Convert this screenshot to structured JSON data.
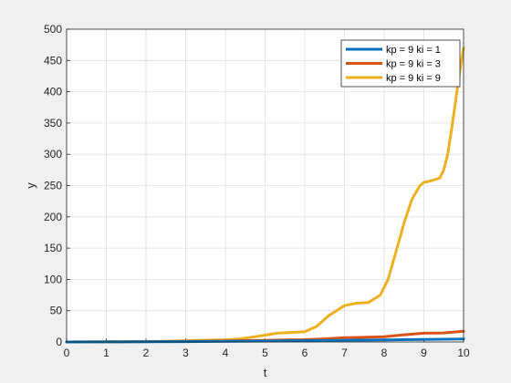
{
  "chart_data": {
    "type": "line",
    "xlabel": "t",
    "ylabel": "y",
    "xlim": [
      0,
      10
    ],
    "ylim": [
      0,
      500
    ],
    "xticks": [
      "0",
      "1",
      "2",
      "3",
      "4",
      "5",
      "6",
      "7",
      "8",
      "9",
      "10"
    ],
    "yticks": [
      "0",
      "50",
      "100",
      "150",
      "200",
      "250",
      "300",
      "350",
      "400",
      "450",
      "500"
    ],
    "grid": true,
    "legend_position": "top-right",
    "series": [
      {
        "name": "kp = 9  ki = 1",
        "color": "#0072bd",
        "x": [
          0,
          1,
          2,
          3,
          4,
          5,
          6,
          7,
          8,
          9,
          10
        ],
        "y": [
          0,
          0.1,
          0.3,
          0.6,
          1,
          1.5,
          2,
          2.6,
          3.2,
          3.9,
          4.8
        ]
      },
      {
        "name": "kp = 9  ki = 3",
        "color": "#d95319",
        "x": [
          0,
          1,
          2,
          3,
          4,
          5,
          5.5,
          6,
          6.5,
          7,
          7.5,
          8,
          8.5,
          9,
          9.5,
          10
        ],
        "y": [
          0,
          0.2,
          0.6,
          1,
          1.6,
          2.5,
          3.2,
          3.6,
          5,
          6.8,
          7.4,
          8.5,
          11.5,
          14,
          14.5,
          17
        ]
      },
      {
        "name": "kp = 9  ki = 9",
        "color": "#edb120",
        "x": [
          0,
          1,
          2,
          2.5,
          3,
          3.5,
          4,
          4.3,
          4.6,
          5,
          5.3,
          5.6,
          6,
          6.3,
          6.6,
          7,
          7.3,
          7.6,
          7.9,
          8.1,
          8.3,
          8.5,
          8.7,
          8.9,
          9.0,
          9.2,
          9.4,
          9.5,
          9.6,
          9.7,
          9.8,
          9.9,
          10
        ],
        "y": [
          0,
          0.3,
          0.8,
          1.2,
          2,
          2.8,
          3.5,
          4.5,
          7,
          11,
          14,
          15,
          16.5,
          25,
          42,
          58,
          62,
          63,
          75,
          100,
          145,
          190,
          228,
          250,
          255,
          258,
          262,
          275,
          300,
          340,
          385,
          430,
          470
        ]
      }
    ]
  }
}
